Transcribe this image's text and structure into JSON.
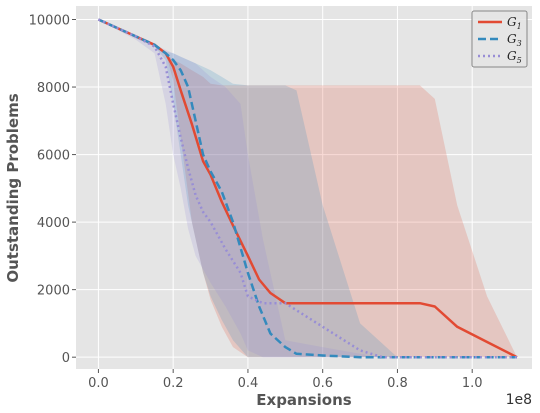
{
  "chart_data": {
    "type": "line",
    "xlabel": "Expansions",
    "ylabel": "Outstanding Problems",
    "x_exponent_label": "1e8",
    "xlim": [
      -0.06,
      1.16
    ],
    "ylim": [
      -350,
      10400
    ],
    "x_ticks": [
      0.0,
      0.2,
      0.4,
      0.6,
      0.8,
      1.0
    ],
    "x_tick_labels": [
      "0.0",
      "0.2",
      "0.4",
      "0.6",
      "0.8",
      "1.0"
    ],
    "y_ticks": [
      0,
      2000,
      4000,
      6000,
      8000,
      10000
    ],
    "y_tick_labels": [
      "0",
      "2000",
      "4000",
      "6000",
      "8000",
      "10000"
    ],
    "grid": true,
    "legend_position": "top-right",
    "series": [
      {
        "name": "G",
        "subscript": "1",
        "color": "#e24a33",
        "style": "solid",
        "x": [
          0.0,
          0.1,
          0.15,
          0.18,
          0.2,
          0.22,
          0.25,
          0.28,
          0.3,
          0.33,
          0.36,
          0.4,
          0.43,
          0.46,
          0.5,
          0.6,
          0.7,
          0.8,
          0.86,
          0.9,
          0.96,
          1.04,
          1.12
        ],
        "y": [
          10000,
          9500,
          9250,
          9000,
          8600,
          7900,
          6900,
          5800,
          5400,
          4600,
          3900,
          3000,
          2300,
          1900,
          1600,
          1600,
          1600,
          1600,
          1600,
          1500,
          900,
          450,
          0
        ],
        "band_upper": [
          10000,
          9500,
          9250,
          9000,
          8800,
          8700,
          8500,
          8300,
          8100,
          8050,
          8050,
          8050,
          8050,
          8050,
          8050,
          8050,
          8050,
          8050,
          8050,
          7650,
          4500,
          1800,
          0
        ],
        "band_lower": [
          10000,
          9450,
          9200,
          9000,
          8200,
          6500,
          4000,
          2500,
          1700,
          900,
          300,
          0,
          0,
          0,
          0,
          0,
          0,
          0,
          0,
          0,
          0,
          0,
          0
        ]
      },
      {
        "name": "G",
        "subscript": "3",
        "color": "#348abd",
        "style": "dashed",
        "x": [
          0.0,
          0.1,
          0.15,
          0.18,
          0.2,
          0.22,
          0.24,
          0.26,
          0.28,
          0.3,
          0.33,
          0.36,
          0.4,
          0.43,
          0.46,
          0.5,
          0.53,
          0.6,
          0.7,
          0.8,
          0.9,
          1.0,
          1.12
        ],
        "y": [
          10000,
          9500,
          9250,
          9000,
          8800,
          8500,
          8000,
          7000,
          6000,
          5500,
          4900,
          4000,
          2500,
          1500,
          700,
          300,
          100,
          50,
          0,
          0,
          0,
          0,
          0
        ],
        "band_upper": [
          10000,
          9500,
          9250,
          9050,
          9000,
          8900,
          8800,
          8700,
          8600,
          8500,
          8300,
          8100,
          8050,
          8050,
          8050,
          8050,
          7900,
          4500,
          1000,
          0,
          0,
          0,
          0
        ],
        "band_lower": [
          10000,
          9450,
          9200,
          8800,
          7500,
          6000,
          4500,
          3500,
          2500,
          1800,
          1100,
          500,
          0,
          0,
          0,
          0,
          0,
          0,
          0,
          0,
          0,
          0,
          0
        ]
      },
      {
        "name": "G",
        "subscript": "5",
        "color": "#988ed5",
        "style": "dotted",
        "x": [
          0.0,
          0.1,
          0.15,
          0.18,
          0.2,
          0.22,
          0.24,
          0.26,
          0.28,
          0.3,
          0.34,
          0.38,
          0.4,
          0.44,
          0.5,
          0.6,
          0.7,
          0.76,
          0.8,
          0.9,
          1.0,
          1.12
        ],
        "y": [
          10000,
          9500,
          9200,
          8600,
          7500,
          6500,
          5600,
          4800,
          4300,
          4000,
          3200,
          2500,
          1800,
          1600,
          1600,
          900,
          200,
          0,
          0,
          0,
          0,
          0
        ],
        "band_upper": [
          10000,
          9500,
          9250,
          9100,
          9000,
          8900,
          8800,
          8700,
          8500,
          8300,
          8000,
          7500,
          6000,
          3500,
          500,
          300,
          100,
          0,
          0,
          0,
          0,
          0
        ],
        "band_lower": [
          10000,
          9400,
          9000,
          7500,
          6000,
          5000,
          3800,
          3000,
          2600,
          2200,
          1500,
          700,
          200,
          0,
          0,
          0,
          0,
          0,
          0,
          0,
          0,
          0
        ]
      }
    ]
  }
}
